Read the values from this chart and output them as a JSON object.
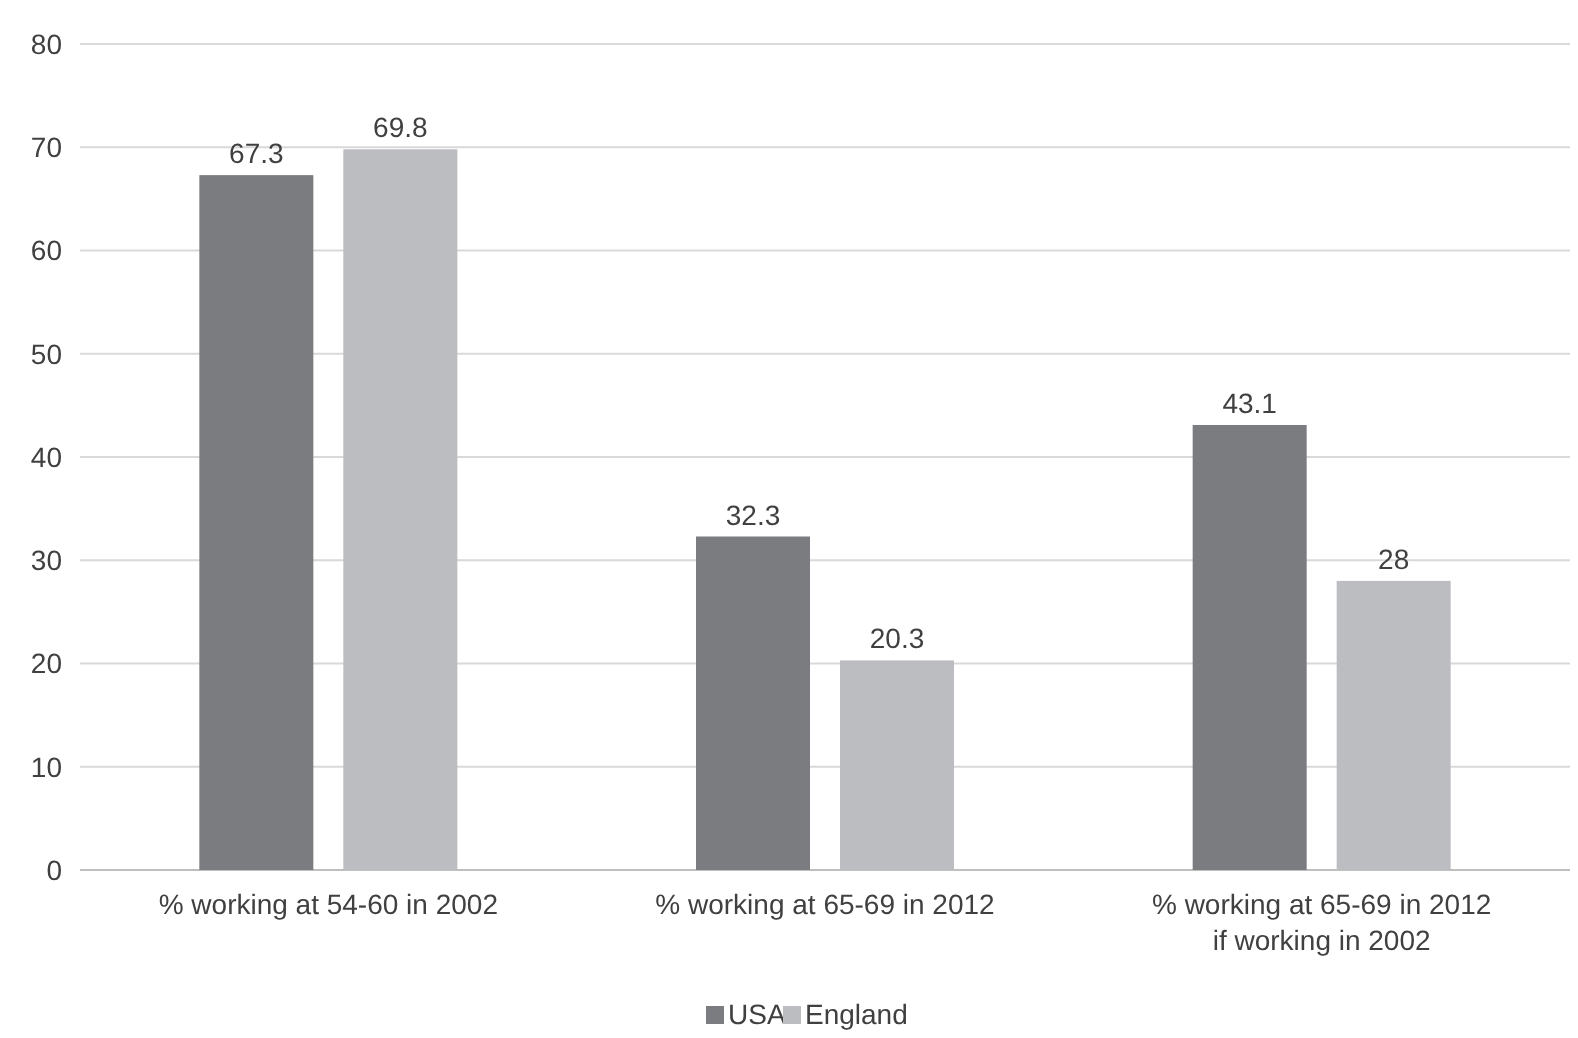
{
  "chart_data": {
    "type": "bar",
    "categories": [
      "% working at 54-60 in 2002",
      "% working at 65-69 in 2012",
      "% working at 65-69 in 2012 if working in 2002"
    ],
    "series": [
      {
        "name": "USA",
        "color": "#7b7c80",
        "values": [
          67.3,
          32.3,
          43.1
        ]
      },
      {
        "name": "England",
        "color": "#bcbdc1",
        "values": [
          69.8,
          20.3,
          28
        ]
      }
    ],
    "ylim": [
      0,
      80
    ],
    "yticks": [
      0,
      10,
      20,
      30,
      40,
      50,
      60,
      70,
      80
    ],
    "grid": "y",
    "legend": "bottom",
    "data_labels": true
  }
}
